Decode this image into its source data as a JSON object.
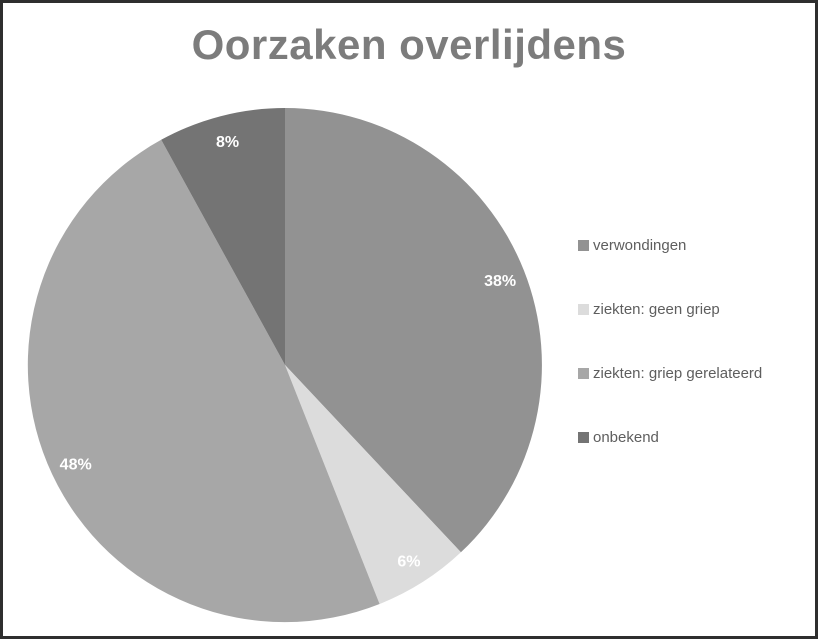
{
  "chart_data": {
    "type": "pie",
    "title": "Oorzaken overlijdens",
    "direction": "clockwise",
    "start_angle_deg": 0,
    "legend_position": "right",
    "categories": [
      "verwondingen",
      "ziekten: geen griep",
      "ziekten: griep gerelateerd",
      "onbekend"
    ],
    "values": [
      38,
      6,
      48,
      8
    ],
    "slices": [
      {
        "label": "verwondingen",
        "value": 38,
        "percent_label": "38%",
        "color": "#929292"
      },
      {
        "label": "ziekten: geen griep",
        "value": 6,
        "percent_label": "6%",
        "color": "#dcdcdc"
      },
      {
        "label": "ziekten: griep gerelateerd",
        "value": 48,
        "percent_label": "48%",
        "color": "#a7a7a7"
      },
      {
        "label": "onbekend",
        "value": 8,
        "percent_label": "8%",
        "color": "#747474"
      }
    ],
    "slice_label_color": "#ffffff"
  },
  "styles": {
    "title_color": "#7c7c7c",
    "legend_text_color": "#5e5e5e",
    "frame_border_color": "#2e2e2e",
    "background": "#ffffff"
  }
}
